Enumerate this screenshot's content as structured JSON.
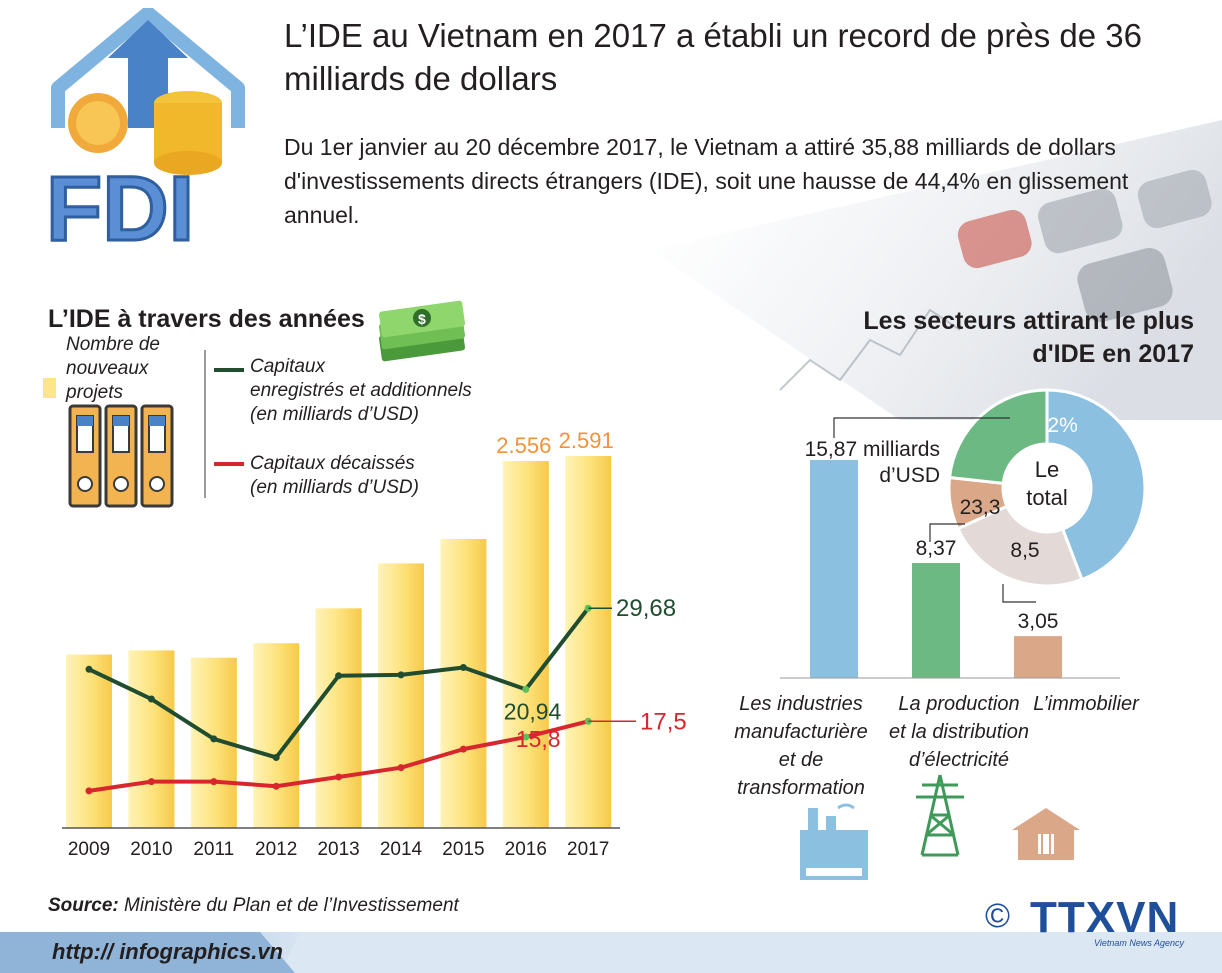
{
  "header": {
    "logo_text": "FDI",
    "title": "L’IDE au Vietnam en 2017 a établi un record de près de 36 milliards de dollars",
    "intro": "Du 1er janvier au 20 décembre 2017, le Vietnam a attiré 35,88 milliards de dollars d'investissements directs étrangers (IDE), soit une hausse de 44,4% en glissement annuel."
  },
  "left_chart": {
    "section_title": "L’IDE à travers des années",
    "legend": {
      "projects": "Nombre de nouveaux projets",
      "registered_line1": "Capitaux",
      "registered_line2": "enregistrés et additionnels",
      "registered_line3": "(en milliards d’USD)",
      "disbursed_line1": "Capitaux décaissés",
      "disbursed_line2": "(en milliards d’USD)"
    }
  },
  "right_chart": {
    "section_title_line1": "Les secteurs attirant le plus",
    "section_title_line2": "d'IDE en 2017",
    "donut_center_line1": "Le",
    "donut_center_line2": "total",
    "unit_line1": "milliards",
    "unit_line2": "d’USD",
    "cat_manufacturing": [
      "Les industries",
      "manufacturière",
      "et de",
      "transformation"
    ],
    "cat_electricity": [
      "La production",
      "et la distribution",
      "d’électricité"
    ],
    "cat_realestate": [
      "L’immobilier"
    ]
  },
  "chart_data": [
    {
      "type": "bar",
      "title": "L’IDE à travers des années",
      "categories": [
        "2009",
        "2010",
        "2011",
        "2012",
        "2013",
        "2014",
        "2015",
        "2016",
        "2017"
      ],
      "series": [
        {
          "name": "Nombre de nouveaux projets",
          "type": "bar",
          "values": [
            1208,
            1237,
            1186,
            1287,
            1530,
            1843,
            2013,
            2556,
            2591
          ],
          "labels": [
            "",
            "",
            "",
            "",
            "",
            "",
            "",
            "2.556",
            "2.591"
          ]
        },
        {
          "name": "Capitaux enregistrés et additionnels (en milliards d’USD)",
          "type": "line",
          "values": [
            23.1,
            19.9,
            15.6,
            13.6,
            22.4,
            22.5,
            23.3,
            20.94,
            29.68
          ],
          "labels": [
            "",
            "",
            "",
            "",
            "",
            "",
            "",
            "20,94",
            "29,68"
          ]
        },
        {
          "name": "Capitaux décaissés (en milliards d’USD)",
          "type": "line",
          "values": [
            10.0,
            11.0,
            11.0,
            10.5,
            11.5,
            12.5,
            14.5,
            15.8,
            17.5
          ],
          "labels": [
            "",
            "",
            "",
            "",
            "",
            "",
            "",
            "15,8",
            "17,5"
          ]
        }
      ],
      "colors": {
        "bars": "#fce07a",
        "registered": "#204d2f",
        "disbursed": "#d8262e"
      }
    },
    {
      "type": "bar",
      "title": "Les secteurs attirant le plus d'IDE en 2017",
      "categories": [
        "Les industries manufacturière et de transformation",
        "La production et la distribution d’électricité",
        "L’immobilier"
      ],
      "values": [
        15.87,
        8.37,
        3.05
      ],
      "labels": [
        "15,87",
        "8,37",
        "3,05"
      ],
      "colors": [
        "#8cc0e0",
        "#6db983",
        "#dba789"
      ]
    },
    {
      "type": "pie",
      "title": "Le total",
      "slices": [
        {
          "label": "44,2%",
          "value": 44.2,
          "color": "#8cc0e0"
        },
        {
          "label": "",
          "value": 24.0,
          "color": "#e3d9d7"
        },
        {
          "label": "8,5",
          "value": 8.5,
          "color": "#dba789"
        },
        {
          "label": "23,3",
          "value": 23.3,
          "color": "#6db983"
        }
      ]
    }
  ],
  "footer": {
    "source_label": "Source:",
    "source_text": " Ministère du Plan et de l’Investissement",
    "url": "http:// infographics.vn",
    "agency_copyright": "©",
    "agency": "TTXVN",
    "agency_sub": "Vietnam News Agency"
  }
}
